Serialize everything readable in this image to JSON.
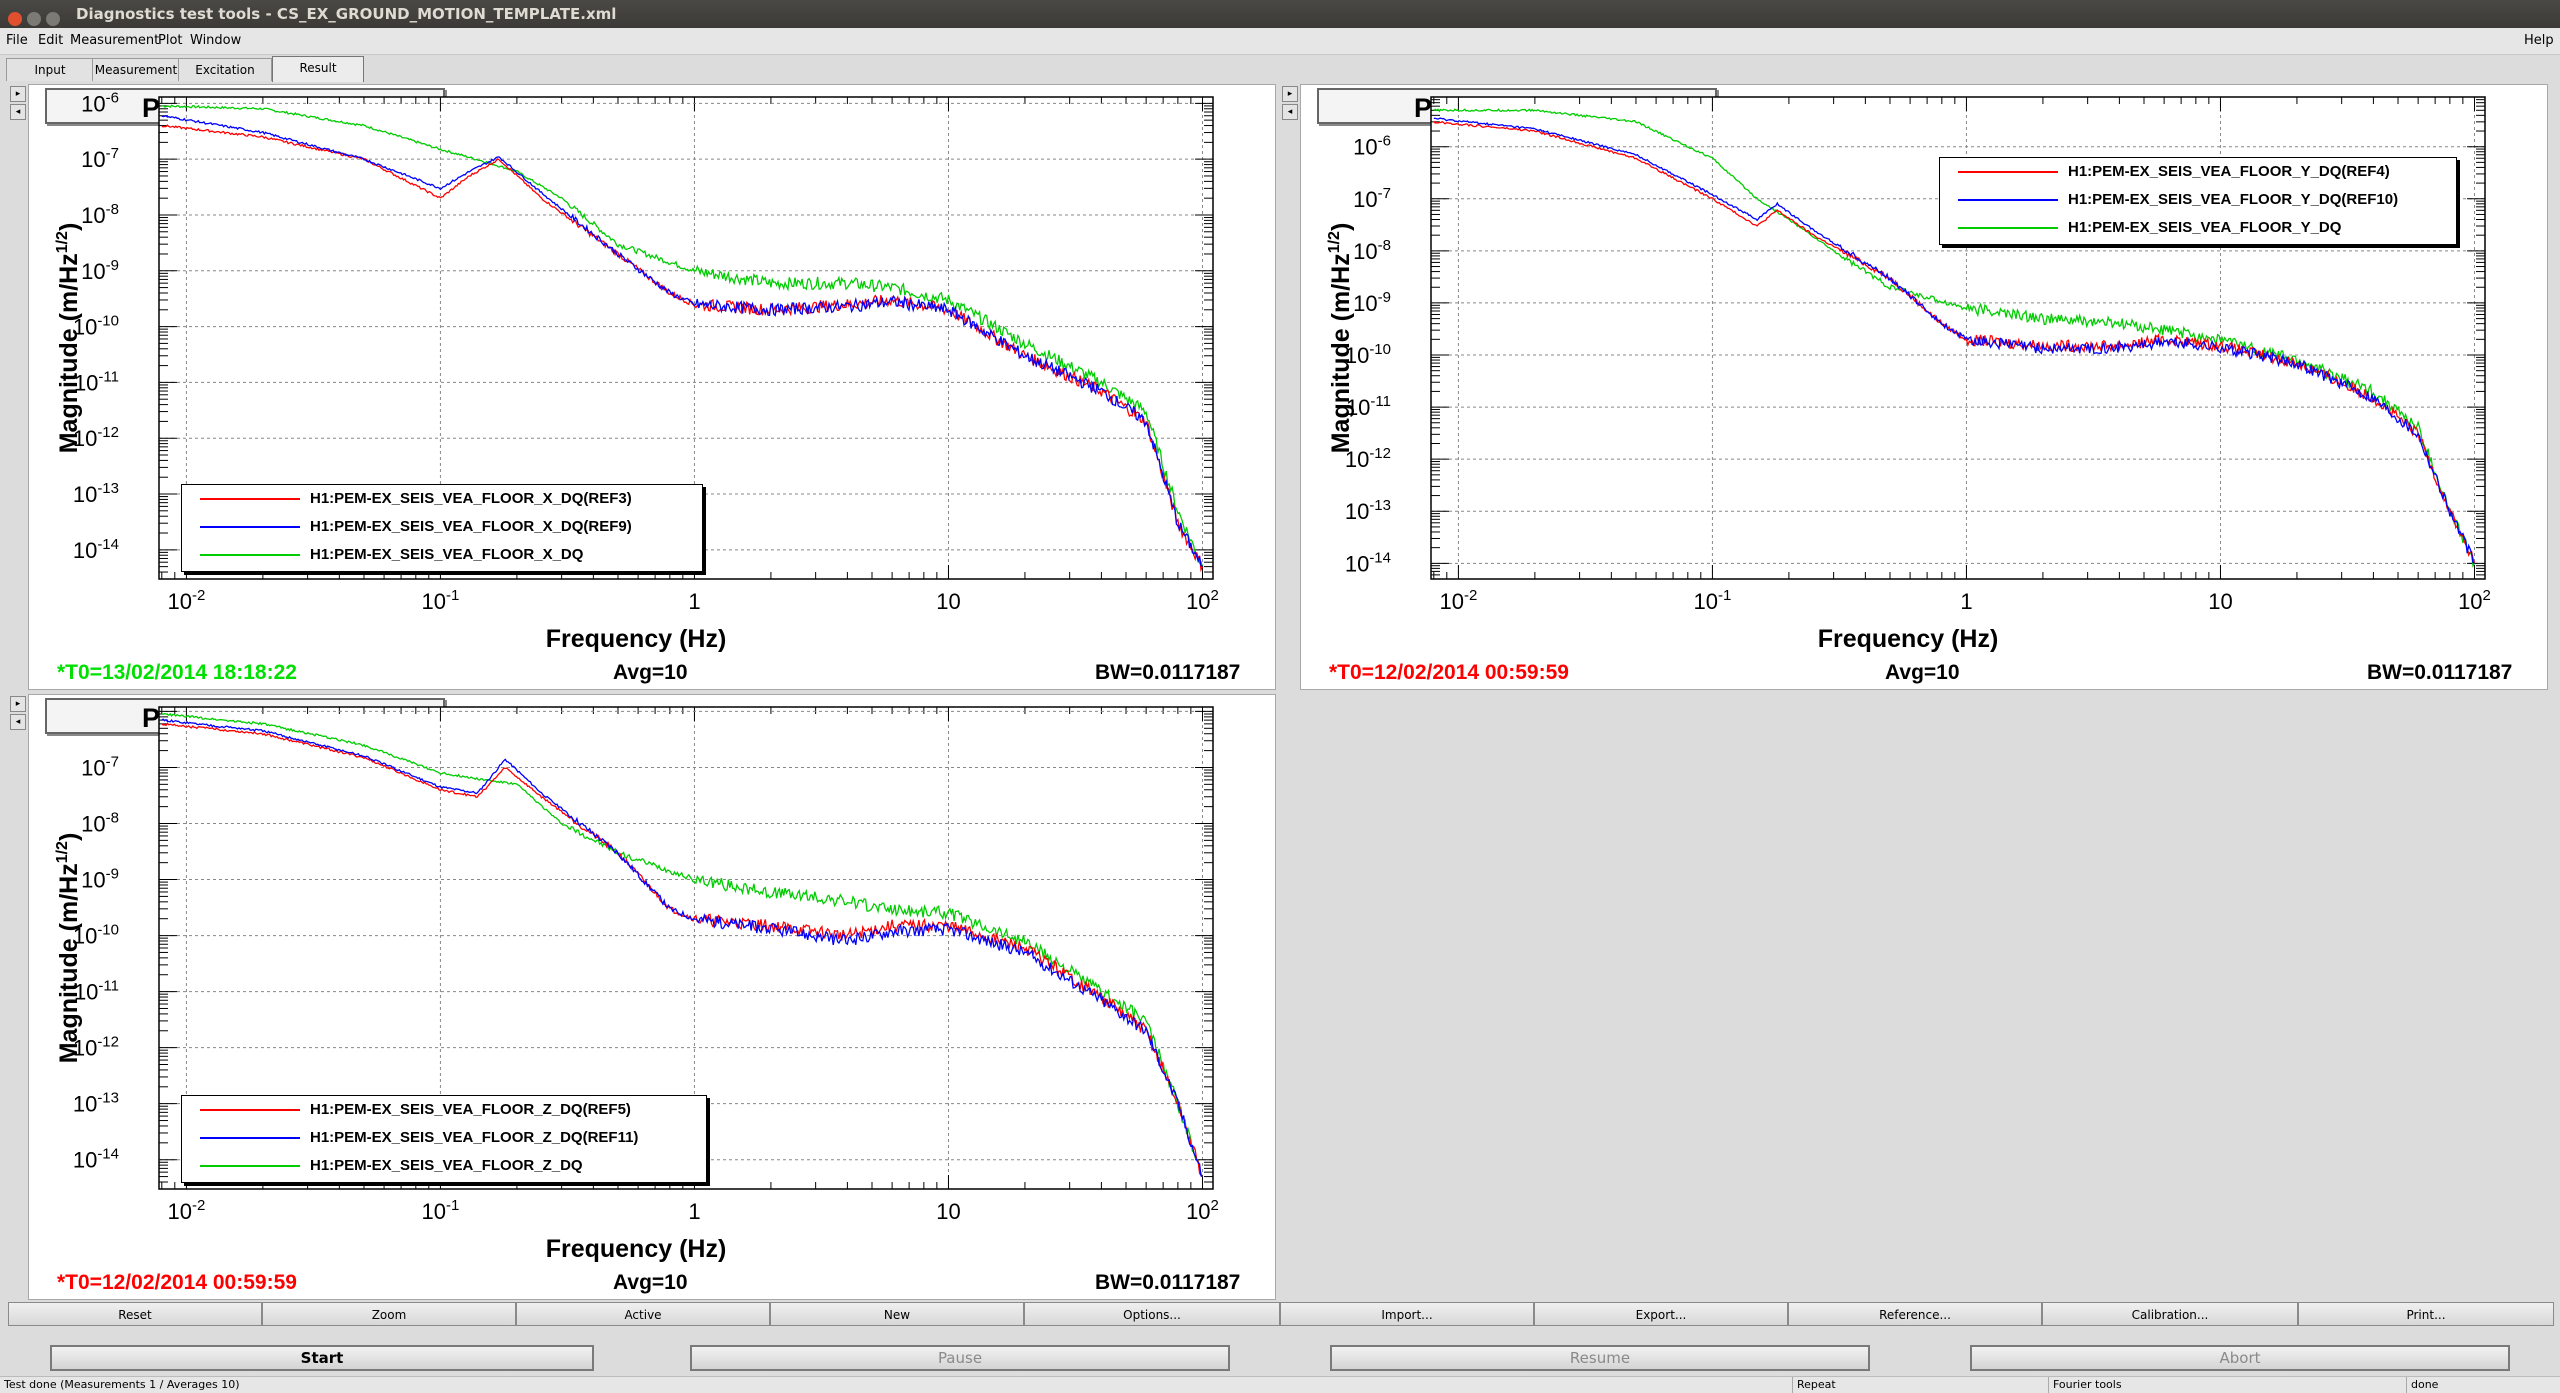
{
  "window": {
    "title": "Diagnostics test tools - CS_EX_GROUND_MOTION_TEMPLATE.xml",
    "colors": {
      "close": "#e0502f",
      "min": "#7b7a74",
      "max": "#7b7a74"
    }
  },
  "menu": [
    {
      "label": "File"
    },
    {
      "label": "Edit"
    },
    {
      "label": "Measurement"
    },
    {
      "label": "Plot"
    },
    {
      "label": "Window"
    }
  ],
  "menu_help": "Help",
  "tabs": [
    {
      "label": "Input"
    },
    {
      "label": "Measurement"
    },
    {
      "label": "Excitation"
    },
    {
      "label": "Result"
    }
  ],
  "panels": [
    {
      "title": "Power spectrum",
      "ylabel": "Magnitude (m/Hz",
      "ylabel_sup": "1/2",
      "ylabel_end": ")",
      "xlabel": "Frequency (Hz)",
      "t0": "*T0=13/02/2014 18:18:22",
      "t0_color": "#00e000",
      "avg": "Avg=10",
      "bw": "BW=0.0117187",
      "legend": [
        {
          "label": "H1:PEM-EX_SEIS_VEA_FLOOR_X_DQ(REF3)",
          "color": "#ff0000"
        },
        {
          "label": "H1:PEM-EX_SEIS_VEA_FLOOR_X_DQ(REF9)",
          "color": "#0000ff"
        },
        {
          "label": "H1:PEM-EX_SEIS_VEA_FLOOR_X_DQ",
          "color": "#00cc00"
        }
      ]
    },
    {
      "title": "Power spectrum",
      "ylabel": "Magnitude (m/Hz",
      "ylabel_sup": "1/2",
      "ylabel_end": ")",
      "xlabel": "Frequency (Hz)",
      "t0": "*T0=12/02/2014 00:59:59",
      "t0_color": "#ff0000",
      "avg": "Avg=10",
      "bw": "BW=0.0117187",
      "legend": [
        {
          "label": "H1:PEM-EX_SEIS_VEA_FLOOR_Y_DQ(REF4)",
          "color": "#ff0000"
        },
        {
          "label": "H1:PEM-EX_SEIS_VEA_FLOOR_Y_DQ(REF10)",
          "color": "#0000ff"
        },
        {
          "label": "H1:PEM-EX_SEIS_VEA_FLOOR_Y_DQ",
          "color": "#00cc00"
        }
      ]
    },
    {
      "title": "Power spectrum",
      "ylabel": "Magnitude (m/Hz",
      "ylabel_sup": "1/2",
      "ylabel_end": ")",
      "xlabel": "Frequency (Hz)",
      "t0": "*T0=12/02/2014 00:59:59",
      "t0_color": "#ff0000",
      "avg": "Avg=10",
      "bw": "BW=0.0117187",
      "legend": [
        {
          "label": "H1:PEM-EX_SEIS_VEA_FLOOR_Z_DQ(REF5)",
          "color": "#ff0000"
        },
        {
          "label": "H1:PEM-EX_SEIS_VEA_FLOOR_Z_DQ(REF11)",
          "color": "#0000ff"
        },
        {
          "label": "H1:PEM-EX_SEIS_VEA_FLOOR_Z_DQ",
          "color": "#00cc00"
        }
      ]
    }
  ],
  "chart_data": [
    {
      "type": "line",
      "title": "Power spectrum",
      "xlabel": "Frequency (Hz)",
      "ylabel": "Magnitude (m/Hz^1/2)",
      "xscale": "log",
      "yscale": "log",
      "xlim": [
        0.0078,
        110
      ],
      "ylim": [
        3e-15,
        1.3e-06
      ],
      "xticks": [
        "10-2",
        "10-1",
        "1",
        "10",
        "102"
      ],
      "yticks": [
        "10-6",
        "10-7",
        "10-8",
        "10-9",
        "10-10",
        "10-11",
        "10-12",
        "10-13",
        "10-14"
      ],
      "grid": true,
      "legend_position": "bottom-left",
      "series": [
        {
          "name": "H1:PEM-EX_SEIS_VEA_FLOOR_X_DQ(REF3)",
          "color": "#ff0000",
          "x": [
            0.008,
            0.02,
            0.05,
            0.1,
            0.13,
            0.17,
            0.25,
            0.5,
            0.8,
            1,
            2,
            4,
            6,
            10,
            20,
            40,
            60,
            80,
            100
          ],
          "y": [
            4e-07,
            2.5e-07,
            1e-07,
            2e-08,
            5e-08,
            1e-07,
            2e-08,
            2e-09,
            4e-10,
            2.5e-10,
            2e-10,
            2.5e-10,
            3e-10,
            2e-10,
            3e-11,
            7e-12,
            2e-12,
            3e-14,
            5e-15
          ]
        },
        {
          "name": "H1:PEM-EX_SEIS_VEA_FLOOR_X_DQ(REF9)",
          "color": "#0000ff",
          "x": [
            0.008,
            0.02,
            0.05,
            0.1,
            0.13,
            0.17,
            0.25,
            0.5,
            0.8,
            1,
            2,
            4,
            6,
            10,
            20,
            40,
            60,
            80,
            100
          ],
          "y": [
            6e-07,
            3e-07,
            1e-07,
            3e-08,
            6e-08,
            1.1e-07,
            2.5e-08,
            2e-09,
            4e-10,
            2.5e-10,
            2e-10,
            2.3e-10,
            2.8e-10,
            2e-10,
            3e-11,
            7e-12,
            2e-12,
            3e-14,
            5e-15
          ]
        },
        {
          "name": "H1:PEM-EX_SEIS_VEA_FLOOR_X_DQ",
          "color": "#00cc00",
          "x": [
            0.008,
            0.02,
            0.05,
            0.1,
            0.15,
            0.2,
            0.3,
            0.5,
            1,
            2,
            4,
            6,
            10,
            20,
            40,
            60,
            80,
            100
          ],
          "y": [
            9e-07,
            8e-07,
            4e-07,
            1.5e-07,
            9e-08,
            6e-08,
            2e-08,
            3e-09,
            1e-09,
            6e-10,
            6e-10,
            5e-10,
            3e-10,
            5e-11,
            1e-11,
            3e-12,
            5e-14,
            5e-15
          ]
        }
      ]
    },
    {
      "type": "line",
      "title": "Power spectrum",
      "xlabel": "Frequency (Hz)",
      "ylabel": "Magnitude (m/Hz^1/2)",
      "xscale": "log",
      "yscale": "log",
      "xlim": [
        0.0078,
        110
      ],
      "ylim": [
        5e-15,
        9e-06
      ],
      "xticks": [
        "10-2",
        "10-1",
        "1",
        "10",
        "102"
      ],
      "yticks": [
        "10-6",
        "10-7",
        "10-8",
        "10-9",
        "10-10",
        "10-11",
        "10-12",
        "10-13",
        "10-14"
      ],
      "grid": true,
      "legend_position": "top-right",
      "series": [
        {
          "name": "H1:PEM-EX_SEIS_VEA_FLOOR_Y_DQ(REF4)",
          "color": "#ff0000",
          "x": [
            0.008,
            0.02,
            0.05,
            0.1,
            0.15,
            0.18,
            0.25,
            0.5,
            0.8,
            1,
            2,
            4,
            6,
            10,
            20,
            40,
            60,
            80,
            100
          ],
          "y": [
            3e-06,
            2e-06,
            6e-07,
            1e-07,
            3e-08,
            6e-08,
            2e-08,
            3e-09,
            4e-10,
            2e-10,
            1.5e-10,
            1.5e-10,
            2e-10,
            1.5e-10,
            7e-11,
            1.5e-11,
            3e-12,
            1e-13,
            1e-14
          ]
        },
        {
          "name": "H1:PEM-EX_SEIS_VEA_FLOOR_Y_DQ(REF10)",
          "color": "#0000ff",
          "x": [
            0.008,
            0.02,
            0.05,
            0.1,
            0.15,
            0.18,
            0.25,
            0.5,
            0.8,
            1,
            2,
            4,
            6,
            10,
            20,
            40,
            60,
            80,
            100
          ],
          "y": [
            3.5e-06,
            2.2e-06,
            7e-07,
            1.2e-07,
            4e-08,
            8e-08,
            2.5e-08,
            3e-09,
            4e-10,
            2e-10,
            1.3e-10,
            1.4e-10,
            1.8e-10,
            1.4e-10,
            7e-11,
            1.5e-11,
            3e-12,
            1e-13,
            1e-14
          ]
        },
        {
          "name": "H1:PEM-EX_SEIS_VEA_FLOOR_Y_DQ",
          "color": "#00cc00",
          "x": [
            0.008,
            0.02,
            0.05,
            0.1,
            0.15,
            0.2,
            0.3,
            0.5,
            1,
            2,
            4,
            6,
            10,
            20,
            40,
            60,
            80,
            100
          ],
          "y": [
            5e-06,
            5e-06,
            3e-06,
            6e-07,
            1e-07,
            4e-08,
            1e-08,
            2e-09,
            8e-10,
            5e-10,
            4e-10,
            3e-10,
            2e-10,
            8e-11,
            2e-11,
            4e-12,
            1e-13,
            1e-14
          ]
        }
      ]
    },
    {
      "type": "line",
      "title": "Power spectrum",
      "xlabel": "Frequency (Hz)",
      "ylabel": "Magnitude (m/Hz^1/2)",
      "xscale": "log",
      "yscale": "log",
      "xlim": [
        0.0078,
        110
      ],
      "ylim": [
        3e-15,
        1.2e-06
      ],
      "xticks": [
        "10-2",
        "10-1",
        "1",
        "10",
        "102"
      ],
      "yticks": [
        "10-7",
        "10-8",
        "10-9",
        "10-10",
        "10-11",
        "10-12",
        "10-13",
        "10-14"
      ],
      "grid": true,
      "legend_position": "bottom-left",
      "series": [
        {
          "name": "H1:PEM-EX_SEIS_VEA_FLOOR_Z_DQ(REF5)",
          "color": "#ff0000",
          "x": [
            0.008,
            0.02,
            0.05,
            0.1,
            0.14,
            0.18,
            0.25,
            0.5,
            0.8,
            1,
            2,
            4,
            6,
            10,
            20,
            40,
            60,
            80,
            100
          ],
          "y": [
            6e-07,
            4e-07,
            1.5e-07,
            4e-08,
            3e-08,
            1e-07,
            3e-08,
            3e-09,
            3e-10,
            2e-10,
            1.5e-10,
            1e-10,
            1.5e-10,
            1.5e-10,
            6e-11,
            8e-12,
            2e-12,
            1e-13,
            5e-15
          ]
        },
        {
          "name": "H1:PEM-EX_SEIS_VEA_FLOOR_Z_DQ(REF11)",
          "color": "#0000ff",
          "x": [
            0.008,
            0.02,
            0.05,
            0.1,
            0.14,
            0.18,
            0.25,
            0.5,
            0.8,
            1,
            2,
            4,
            6,
            10,
            20,
            40,
            60,
            80,
            100
          ],
          "y": [
            7e-07,
            4.5e-07,
            1.6e-07,
            4.5e-08,
            3.5e-08,
            1.4e-07,
            3.5e-08,
            3e-09,
            3e-10,
            2e-10,
            1.3e-10,
            8e-11,
            1.2e-10,
            1.3e-10,
            5e-11,
            7e-12,
            2e-12,
            1e-13,
            5e-15
          ]
        },
        {
          "name": "H1:PEM-EX_SEIS_VEA_FLOOR_Z_DQ",
          "color": "#00cc00",
          "x": [
            0.008,
            0.02,
            0.05,
            0.1,
            0.15,
            0.2,
            0.3,
            0.5,
            1,
            2,
            4,
            6,
            10,
            20,
            40,
            60,
            80,
            100
          ],
          "y": [
            9e-07,
            6e-07,
            2.5e-07,
            8e-08,
            6e-08,
            5e-08,
            1e-08,
            3e-09,
            1e-09,
            6e-10,
            4e-10,
            3e-10,
            2.5e-10,
            8e-11,
            1e-11,
            3e-12,
            1e-13,
            5e-15
          ]
        }
      ]
    }
  ],
  "plot_buttons": [
    {
      "label": "Reset"
    },
    {
      "label": "Zoom"
    },
    {
      "label": "Active"
    },
    {
      "label": "New"
    },
    {
      "label": "Options..."
    },
    {
      "label": "Import..."
    },
    {
      "label": "Export..."
    },
    {
      "label": "Reference..."
    },
    {
      "label": "Calibration..."
    },
    {
      "label": "Print..."
    }
  ],
  "run_buttons": [
    {
      "label": "Start",
      "enabled": true
    },
    {
      "label": "Pause",
      "enabled": false
    },
    {
      "label": "Resume",
      "enabled": false
    },
    {
      "label": "Abort",
      "enabled": false
    }
  ],
  "status": {
    "message": "Test done (Measurements 1 / Averages 10)",
    "repeat": "Repeat",
    "tools": "Fourier tools",
    "state": "done"
  }
}
